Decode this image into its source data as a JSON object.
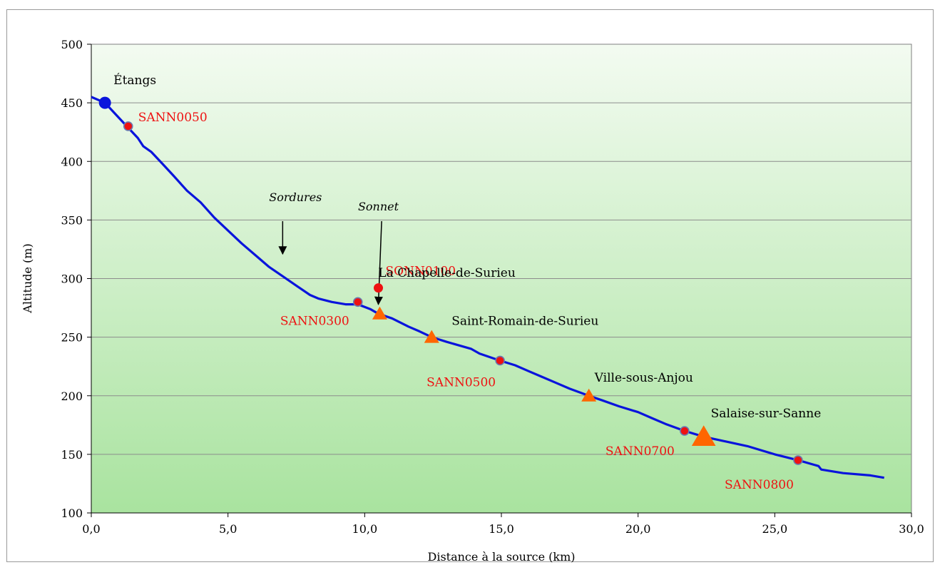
{
  "chart_data": {
    "type": "line",
    "title": "",
    "xlabel": "Distance à la source (km)",
    "ylabel": "Altitude (m)",
    "xlim": [
      0,
      30
    ],
    "ylim": [
      100,
      500
    ],
    "x_ticks": [
      "0,0",
      "5,0",
      "10,0",
      "15,0",
      "20,0",
      "25,0",
      "30,0"
    ],
    "y_ticks": [
      "100",
      "150",
      "200",
      "250",
      "300",
      "350",
      "400",
      "450",
      "500"
    ],
    "grid": "horizontal",
    "background": "gradient light green",
    "colors": {
      "line": "#0a14dc",
      "station": "#ee1111",
      "town": "#ff6600",
      "source": "#0a14dc"
    },
    "profile": {
      "x": [
        0,
        0.5,
        0.9,
        1.3,
        1.7,
        1.9,
        2.2,
        2.6,
        3.0,
        3.5,
        4.0,
        4.5,
        5.0,
        5.5,
        6.0,
        6.5,
        7.0,
        7.5,
        8.0,
        8.3,
        8.8,
        9.3,
        9.75,
        10.2,
        10.5,
        11.0,
        11.6,
        12.0,
        12.45,
        13.0,
        13.9,
        14.2,
        14.95,
        15.5,
        16.0,
        16.5,
        17.0,
        17.5,
        18.2,
        18.7,
        19.3,
        20.0,
        20.5,
        21.0,
        21.7,
        22.4,
        23.0,
        24.0,
        25.0,
        25.85,
        26.6,
        26.7,
        27.5,
        28.5,
        29.0
      ],
      "y": [
        455,
        450,
        440,
        430,
        420,
        413,
        408,
        398,
        388,
        375,
        365,
        352,
        341,
        330,
        320,
        310,
        302,
        294,
        286,
        283,
        280,
        278,
        278,
        274,
        270,
        266,
        259,
        255,
        250,
        246,
        240,
        236,
        230,
        226,
        221,
        216,
        211,
        206,
        200,
        196,
        191,
        186,
        181,
        176,
        170,
        165,
        162,
        157,
        150,
        145,
        140,
        137,
        134,
        132,
        130
      ]
    },
    "source": {
      "name": "Étangs",
      "x": 0.5,
      "y": 450
    },
    "stations": [
      {
        "name": "SANN0050",
        "x": 1.35,
        "y": 430
      },
      {
        "name": "SANN0300",
        "x": 9.75,
        "y": 280
      },
      {
        "name": "SONN0100",
        "x": 10.5,
        "y": 292
      },
      {
        "name": "SANN0500",
        "x": 14.95,
        "y": 230
      },
      {
        "name": "SANN0700",
        "x": 21.7,
        "y": 170
      },
      {
        "name": "SANN0800",
        "x": 25.85,
        "y": 145
      }
    ],
    "towns": [
      {
        "name": "La Chapelle-de-Surieu",
        "x": 10.55,
        "y": 270
      },
      {
        "name": "Saint-Romain-de-Surieu",
        "x": 12.45,
        "y": 250
      },
      {
        "name": "Ville-sous-Anjou",
        "x": 18.2,
        "y": 200
      },
      {
        "name": "Salaise-sur-Sanne",
        "x": 22.4,
        "y": 165
      }
    ],
    "tributaries": [
      {
        "name": "Sordures",
        "x": 7.0,
        "y": 320
      },
      {
        "name": "Sonnet",
        "x": 10.5,
        "y": 278
      }
    ]
  }
}
